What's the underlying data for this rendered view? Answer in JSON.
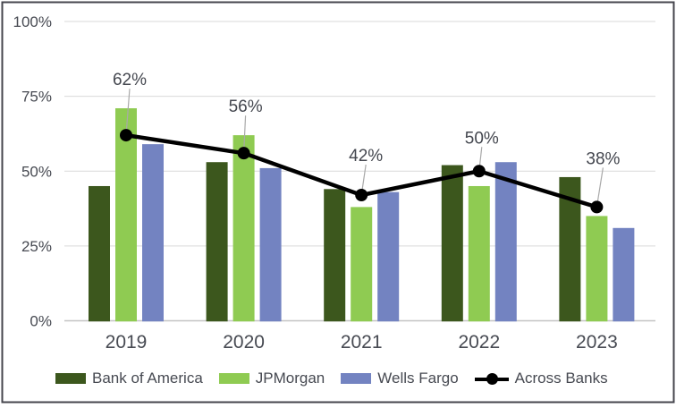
{
  "chart_data": {
    "type": "bar",
    "subtype": "combo-bar-line",
    "title": "",
    "xlabel": "",
    "ylabel": "",
    "categories": [
      "2019",
      "2020",
      "2021",
      "2022",
      "2023"
    ],
    "series": [
      {
        "name": "Bank of America",
        "kind": "bar",
        "color": "#3c571d",
        "values": [
          45,
          53,
          44,
          52,
          48
        ]
      },
      {
        "name": "JPMorgan",
        "kind": "bar",
        "color": "#8fcb52",
        "values": [
          71,
          62,
          38,
          45,
          35
        ]
      },
      {
        "name": "Wells Fargo",
        "kind": "bar",
        "color": "#7383c1",
        "values": [
          59,
          51,
          43,
          53,
          31
        ]
      },
      {
        "name": "Across Banks",
        "kind": "line",
        "color": "#000000",
        "values": [
          62,
          56,
          42,
          50,
          38
        ],
        "data_labels": [
          "62%",
          "56%",
          "42%",
          "50%",
          "38%"
        ],
        "label_offsets": [
          [
            4,
            -56
          ],
          [
            2,
            -46
          ],
          [
            5,
            -38
          ],
          [
            3,
            -31
          ],
          [
            7,
            -48
          ]
        ]
      }
    ],
    "ylim": [
      0,
      100
    ],
    "yticks": [
      {
        "value": 0,
        "label": "0%"
      },
      {
        "value": 25,
        "label": "25%"
      },
      {
        "value": 50,
        "label": "50%"
      },
      {
        "value": 75,
        "label": "75%"
      },
      {
        "value": 100,
        "label": "100%"
      }
    ],
    "grid": "horizontal",
    "legend_position": "bottom"
  },
  "style": {
    "background": "#ffffff",
    "frame_border": "#45454d",
    "gridline": "#d9d9d9",
    "axis_line": "#c4c4c4",
    "tick_text": "#474a52",
    "data_label_text": "#44474f",
    "leader_line": "#a9a9a9",
    "legend_text": "#474a52"
  }
}
